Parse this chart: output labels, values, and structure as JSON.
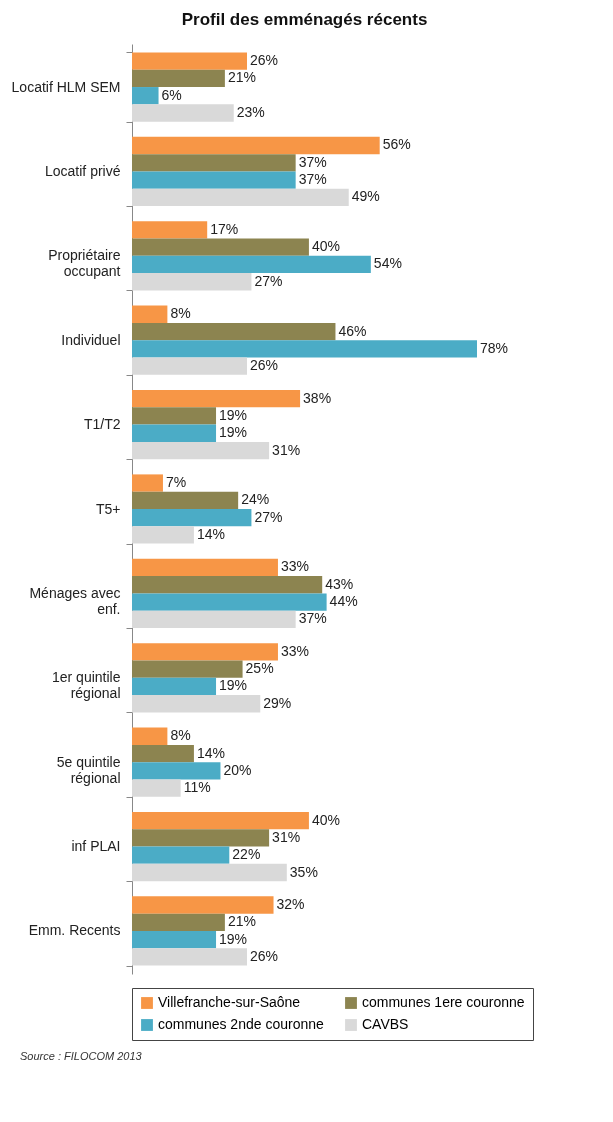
{
  "chart_data": {
    "type": "bar",
    "orientation": "horizontal",
    "title": "Profil des emménagés récents",
    "categories": [
      "Locatif HLM SEM",
      "Locatif privé",
      "Propriétaire occupant",
      "Individuel",
      "T1/T2",
      "T5+",
      "Ménages avec enf.",
      "1er quintile régional",
      "5e quintile régional",
      "inf PLAI",
      "Emm. Recents"
    ],
    "series": [
      {
        "name": "Villefranche-sur-Saône",
        "color": "#f79646",
        "values": [
          26,
          56,
          17,
          8,
          38,
          7,
          33,
          33,
          8,
          40,
          32
        ],
        "value_labels": [
          "26%",
          "56%",
          "17%",
          "8%",
          "38%",
          "7%",
          "33%",
          "33%",
          "8%",
          "40%",
          "32%"
        ]
      },
      {
        "name": "communes 1ere couronne",
        "color": "#8c8450",
        "values": [
          21,
          37,
          40,
          46,
          19,
          24,
          43,
          25,
          14,
          31,
          21
        ],
        "value_labels": [
          "21%",
          "37%",
          "40%",
          "46%",
          "19%",
          "24%",
          "43%",
          "25%",
          "14%",
          "31%",
          "21%"
        ]
      },
      {
        "name": "communes 2nde couronne",
        "color": "#4bacc6",
        "values": [
          6,
          37,
          54,
          78,
          19,
          27,
          44,
          19,
          20,
          22,
          19
        ],
        "value_labels": [
          "6%",
          "37%",
          "54%",
          "78%",
          "19%",
          "27%",
          "44%",
          "19%",
          "20%",
          "22%",
          "19%"
        ]
      },
      {
        "name": "CAVBS",
        "color": "#d9d9d9",
        "values": [
          23,
          49,
          27,
          26,
          31,
          14,
          37,
          29,
          11,
          35,
          26
        ],
        "value_labels": [
          "23%",
          "49%",
          "27%",
          "26%",
          "31%",
          "14%",
          "37%",
          "29%",
          "11%",
          "35%",
          "26%"
        ]
      }
    ],
    "legend": "bottom",
    "annotations": [
      "Source : FILOCOM 2013"
    ]
  }
}
